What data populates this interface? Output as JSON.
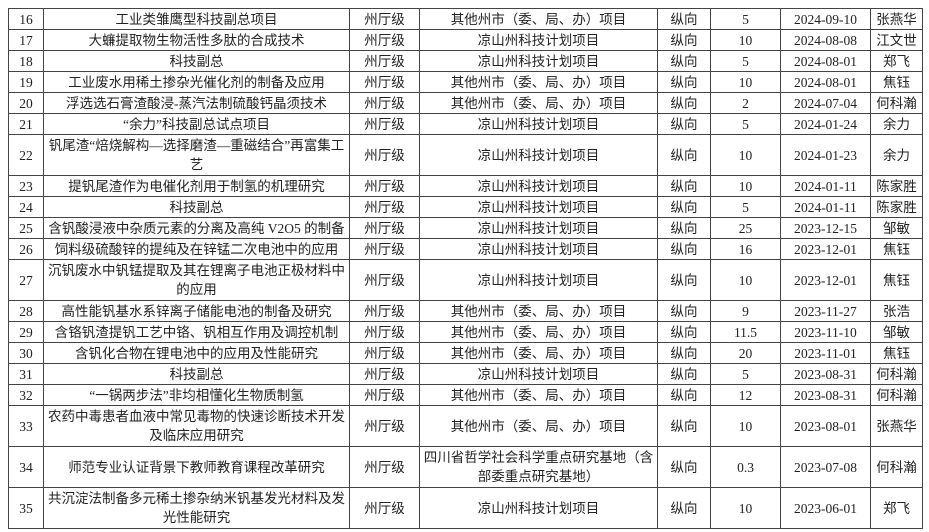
{
  "table": {
    "rows": [
      {
        "no": "16",
        "name": "工业类雏鹰型科技副总项目",
        "level": "州厅级",
        "source": "其他州市（委、局、办）项目",
        "type": "纵向",
        "amount": "5",
        "date": "2024-09-10",
        "person": "张燕华"
      },
      {
        "no": "17",
        "name": "大蠊提取物生物活性多肽的合成技术",
        "level": "州厅级",
        "source": "凉山州科技计划项目",
        "type": "纵向",
        "amount": "10",
        "date": "2024-08-08",
        "person": "江文世"
      },
      {
        "no": "18",
        "name": "科技副总",
        "level": "州厅级",
        "source": "凉山州科技计划项目",
        "type": "纵向",
        "amount": "5",
        "date": "2024-08-01",
        "person": "郑飞"
      },
      {
        "no": "19",
        "name": "工业废水用稀土掺杂光催化剂的制备及应用",
        "level": "州厅级",
        "source": "其他州市（委、局、办）项目",
        "type": "纵向",
        "amount": "10",
        "date": "2024-08-01",
        "person": "焦钰"
      },
      {
        "no": "20",
        "name": "浮选选石膏渣酸浸-蒸汽法制硫酸钙晶须技术",
        "level": "州厅级",
        "source": "其他州市（委、局、办）项目",
        "type": "纵向",
        "amount": "2",
        "date": "2024-07-04",
        "person": "何科瀚"
      },
      {
        "no": "21",
        "name": "“余力”科技副总试点项目",
        "level": "州厅级",
        "source": "凉山州科技计划项目",
        "type": "纵向",
        "amount": "5",
        "date": "2024-01-24",
        "person": "余力"
      },
      {
        "no": "22",
        "name": "钒尾渣“焙烧解构—选择磨渣—重磁结合”再富集工艺",
        "level": "州厅级",
        "source": "凉山州科技计划项目",
        "type": "纵向",
        "amount": "10",
        "date": "2024-01-23",
        "person": "余力",
        "tall": true
      },
      {
        "no": "23",
        "name": "提钒尾渣作为电催化剂用于制氢的机理研究",
        "level": "州厅级",
        "source": "凉山州科技计划项目",
        "type": "纵向",
        "amount": "10",
        "date": "2024-01-11",
        "person": "陈家胜"
      },
      {
        "no": "24",
        "name": "科技副总",
        "level": "州厅级",
        "source": "凉山州科技计划项目",
        "type": "纵向",
        "amount": "5",
        "date": "2024-01-11",
        "person": "陈家胜"
      },
      {
        "no": "25",
        "name": "含钒酸浸液中杂质元素的分离及高纯 V2O5 的制备",
        "level": "州厅级",
        "source": "凉山州科技计划项目",
        "type": "纵向",
        "amount": "25",
        "date": "2023-12-15",
        "person": "邹敏"
      },
      {
        "no": "26",
        "name": "饲料级硫酸锌的提纯及在锌锰二次电池中的应用",
        "level": "州厅级",
        "source": "凉山州科技计划项目",
        "type": "纵向",
        "amount": "16",
        "date": "2023-12-01",
        "person": "焦钰"
      },
      {
        "no": "27",
        "name": "沉钒废水中钒锰提取及其在锂离子电池正极材料中的应用",
        "level": "州厅级",
        "source": "凉山州科技计划项目",
        "type": "纵向",
        "amount": "10",
        "date": "2023-12-01",
        "person": "焦钰",
        "tall": true
      },
      {
        "no": "28",
        "name": "高性能钒基水系锌离子储能电池的制备及研究",
        "level": "州厅级",
        "source": "其他州市（委、局、办）项目",
        "type": "纵向",
        "amount": "9",
        "date": "2023-11-27",
        "person": "张浩"
      },
      {
        "no": "29",
        "name": "含铬钒渣提钒工艺中铬、钒相互作用及调控机制",
        "level": "州厅级",
        "source": "其他州市（委、局、办）项目",
        "type": "纵向",
        "amount": "11.5",
        "date": "2023-11-10",
        "person": "邹敏"
      },
      {
        "no": "30",
        "name": "含钒化合物在锂电池中的应用及性能研究",
        "level": "州厅级",
        "source": "其他州市（委、局、办）项目",
        "type": "纵向",
        "amount": "20",
        "date": "2023-11-01",
        "person": "焦钰"
      },
      {
        "no": "31",
        "name": "科技副总",
        "level": "州厅级",
        "source": "凉山州科技计划项目",
        "type": "纵向",
        "amount": "5",
        "date": "2023-08-31",
        "person": "何科瀚"
      },
      {
        "no": "32",
        "name": "“一锅两步法”非均相懂化生物质制氢",
        "level": "州厅级",
        "source": "其他州市（委、局、办）项目",
        "type": "纵向",
        "amount": "12",
        "date": "2023-08-31",
        "person": "何科瀚"
      },
      {
        "no": "33",
        "name": "农药中毒患者血液中常见毒物的快速诊断技术开发及临床应用研究",
        "level": "州厅级",
        "source": "其他州市（委、局、办）项目",
        "type": "纵向",
        "amount": "10",
        "date": "2023-08-01",
        "person": "张燕华",
        "tall": true
      },
      {
        "no": "34",
        "name": "师范专业认证背景下教师教育课程改革研究",
        "level": "州厅级",
        "source": "四川省哲学社会科学重点研究基地（含部委重点研究基地）",
        "type": "纵向",
        "amount": "0.3",
        "date": "2023-07-08",
        "person": "何科瀚",
        "tall": true
      },
      {
        "no": "35",
        "name": "共沉淀法制备多元稀土掺杂纳米钒基发光材料及发光性能研究",
        "level": "州厅级",
        "source": "凉山州科技计划项目",
        "type": "纵向",
        "amount": "10",
        "date": "2023-06-01",
        "person": "郑飞",
        "tall": true
      }
    ]
  }
}
